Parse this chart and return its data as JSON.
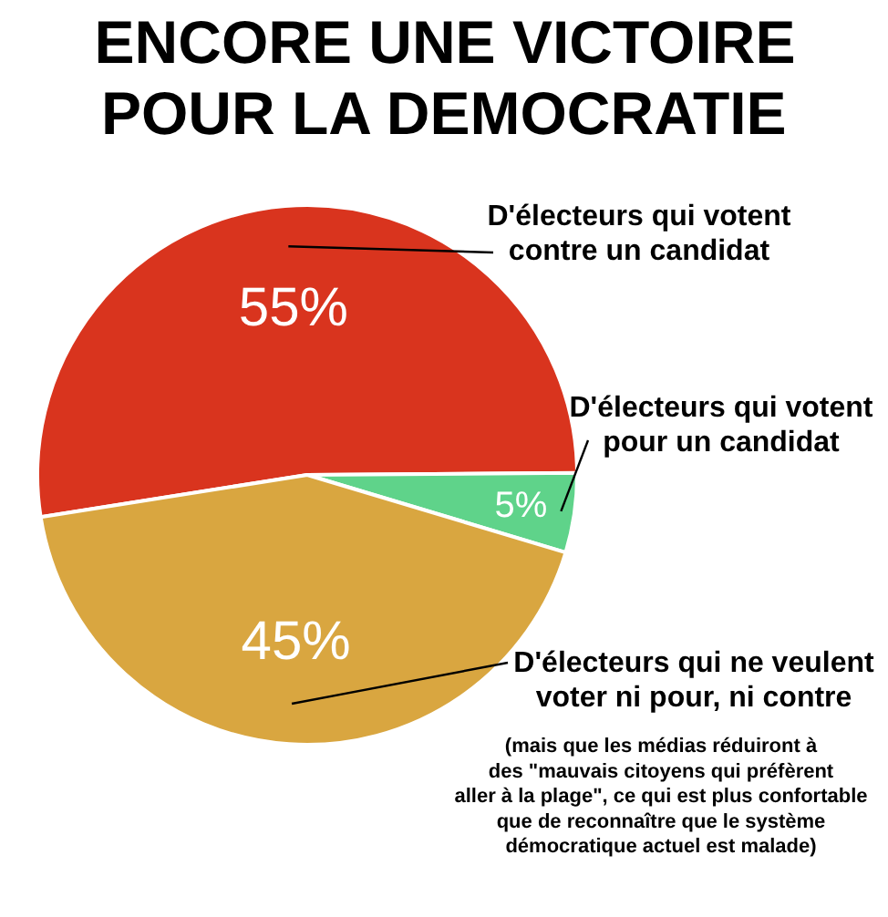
{
  "chart_data": {
    "type": "pie",
    "title": "ENCORE UNE VICTOIRE\nPOUR LA DEMOCRATIE",
    "categories": [
      "D'électeurs qui votent\ncontre un candidat",
      "D'électeurs qui votent\npour un candidat",
      "D'électeurs qui ne veulent\nvoter ni pour, ni contre"
    ],
    "values": [
      55,
      5,
      45
    ],
    "value_labels": [
      "55%",
      "5%",
      "45%"
    ],
    "colors": [
      "#d9341e",
      "#5fd38a",
      "#d9a640"
    ],
    "annotations": [
      "(mais que les médias réduiront à\ndes \"mauvais citoyens qui préfèrent\naller à la plage\", ce qui est plus confortable\nque de reconnaître que le système\ndémocratique actuel est malade)"
    ]
  }
}
